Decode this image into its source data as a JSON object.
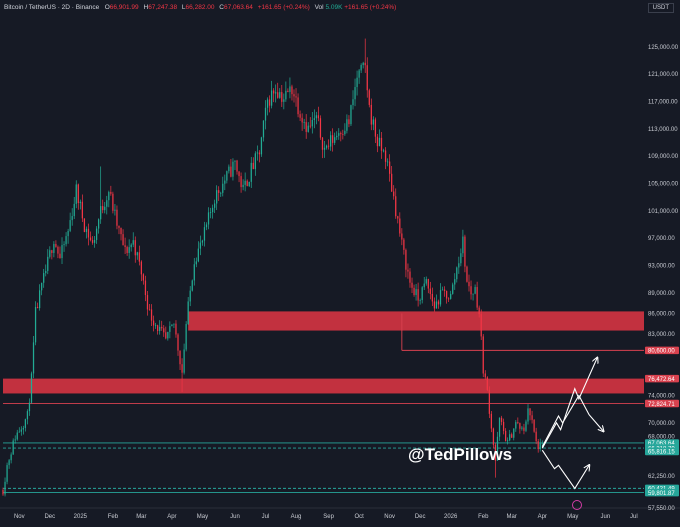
{
  "header": {
    "symbol": "Bitcoin / TetherUS · 2D · Binance",
    "open_label": "O",
    "open": "66,901.99",
    "high_label": "H",
    "high": "67,247.38",
    "low_label": "L",
    "low": "66,282.00",
    "close_label": "C",
    "close": "67,063.64",
    "change": "+161.65 (+0.24%)",
    "volume_label": "Vol",
    "volume": "5.09K",
    "volume_change": "+161.65 (+0.24%)"
  },
  "watermark": "@TedPillows",
  "colors": {
    "background": "#161a25",
    "up": "#22ab94",
    "down": "#f23645",
    "zone": "#c2313f",
    "line_red": "#d9424f",
    "line_green": "#26a69a",
    "arrow": "#ffffff",
    "axis_text": "#c9ccd3"
  },
  "chart_data": {
    "type": "candlestick",
    "title": "Bitcoin / TetherUS · 2D · Binance",
    "currency": "USDT",
    "ylim": [
      57550,
      129500
    ],
    "y_ticks": [
      125000,
      121000,
      117000,
      113000,
      109000,
      105000,
      101000,
      97000,
      93000,
      89000,
      86000,
      83000,
      80600,
      76472.64,
      74000,
      72824.71,
      70000,
      68000,
      67063.64,
      66318.7,
      65816.15,
      62250,
      60421.49,
      59801.87,
      57550
    ],
    "y_tick_labels": [
      "125,000.00",
      "121,000.00",
      "117,000.00",
      "113,000.00",
      "109,000.00",
      "105,000.00",
      "101,000.00",
      "97,000.00",
      "93,000.00",
      "89,000.00",
      "86,000.00",
      "83,000.00",
      "80,600.00",
      "76,472.64",
      "74,000.00",
      "72,824.71",
      "70,000.00",
      "68,000.00",
      "67,063.64",
      "66,318.70",
      "65,816.15",
      "62,250.00",
      "60,421.49",
      "59,801.87",
      "57,550.00"
    ],
    "x_ticks": [
      {
        "label": "Nov",
        "i": 8
      },
      {
        "label": "Dec",
        "i": 23
      },
      {
        "label": "2025",
        "i": 38
      },
      {
        "label": "Feb",
        "i": 54
      },
      {
        "label": "Mar",
        "i": 68
      },
      {
        "label": "Apr",
        "i": 83
      },
      {
        "label": "May",
        "i": 98
      },
      {
        "label": "Jun",
        "i": 114
      },
      {
        "label": "Jul",
        "i": 129
      },
      {
        "label": "Aug",
        "i": 144
      },
      {
        "label": "Sep",
        "i": 160
      },
      {
        "label": "Oct",
        "i": 175
      },
      {
        "label": "Nov",
        "i": 190
      },
      {
        "label": "Dec",
        "i": 205
      },
      {
        "label": "2026",
        "i": 220
      },
      {
        "label": "Feb",
        "i": 236
      },
      {
        "label": "Mar",
        "i": 250
      },
      {
        "label": "Apr",
        "i": 265
      },
      {
        "label": "May",
        "i": 280
      },
      {
        "label": "Jun",
        "i": 296
      },
      {
        "label": "Jul",
        "i": 310
      }
    ],
    "x_index_range": [
      0,
      315
    ],
    "price_waypoints": [
      [
        0,
        60200
      ],
      [
        2,
        63800
      ],
      [
        6,
        68000
      ],
      [
        9,
        69500
      ],
      [
        12,
        71000
      ],
      [
        14,
        76472.64
      ],
      [
        16,
        86000
      ],
      [
        20,
        91000
      ],
      [
        25,
        97000
      ],
      [
        28,
        94000
      ],
      [
        32,
        98000
      ],
      [
        36,
        104000
      ],
      [
        40,
        99000
      ],
      [
        44,
        96000
      ],
      [
        48,
        101000
      ],
      [
        52,
        104000
      ],
      [
        56,
        99000
      ],
      [
        60,
        95000
      ],
      [
        64,
        96500
      ],
      [
        68,
        92000
      ],
      [
        72,
        86000
      ],
      [
        76,
        84000
      ],
      [
        80,
        82000
      ],
      [
        84,
        84500
      ],
      [
        88,
        77500
      ],
      [
        90,
        84500
      ],
      [
        94,
        94000
      ],
      [
        98,
        96500
      ],
      [
        104,
        103000
      ],
      [
        110,
        106000
      ],
      [
        114,
        108000
      ],
      [
        118,
        104000
      ],
      [
        122,
        107000
      ],
      [
        126,
        109500
      ],
      [
        130,
        117000
      ],
      [
        134,
        119000
      ],
      [
        138,
        117500
      ],
      [
        142,
        119000
      ],
      [
        146,
        115500
      ],
      [
        150,
        113000
      ],
      [
        154,
        114500
      ],
      [
        158,
        110000
      ],
      [
        162,
        111500
      ],
      [
        166,
        113000
      ],
      [
        170,
        114000
      ],
      [
        174,
        120500
      ],
      [
        178,
        122000
      ],
      [
        180,
        116000
      ],
      [
        184,
        111000
      ],
      [
        188,
        109000
      ],
      [
        192,
        103000
      ],
      [
        196,
        96000
      ],
      [
        200,
        90500
      ],
      [
        204,
        88000
      ],
      [
        208,
        90500
      ],
      [
        212,
        87000
      ],
      [
        216,
        89000
      ],
      [
        220,
        88500
      ],
      [
        224,
        94000
      ],
      [
        226,
        96500
      ],
      [
        228,
        90500
      ],
      [
        230,
        89000
      ],
      [
        232,
        89500
      ],
      [
        234,
        86000
      ],
      [
        236,
        78000
      ],
      [
        238,
        74500
      ],
      [
        240,
        69500
      ],
      [
        242,
        64500
      ],
      [
        244,
        70500
      ],
      [
        248,
        67000
      ],
      [
        252,
        70000
      ],
      [
        256,
        68500
      ],
      [
        258,
        72500
      ],
      [
        260,
        70000
      ],
      [
        262,
        67000
      ],
      [
        264,
        66318.7
      ],
      [
        265,
        67063.64
      ]
    ],
    "low_points": [
      [
        88,
        74500
      ],
      [
        242,
        62000
      ],
      [
        264,
        65816.15
      ]
    ],
    "high_points": [
      [
        178,
        126200
      ],
      [
        48,
        107500
      ],
      [
        224,
        94300
      ]
    ],
    "zones": [
      {
        "from": 83500,
        "to": 86300,
        "x_start_i": 91
      },
      {
        "from": 74300,
        "to": 76472.64,
        "x_start_i": 0
      }
    ],
    "lines": [
      {
        "value": 80600,
        "label": "80,600.00",
        "color": "red",
        "style": "solid",
        "x_start_i": 196
      },
      {
        "value": 72824.71,
        "label": "72,824.71",
        "color": "red",
        "style": "solid",
        "x_start_i": 0
      },
      {
        "value": 66318.7,
        "label": "66,318.70",
        "color": "green",
        "style": "dashed",
        "x_start_i": 0
      },
      {
        "value": 67063.64,
        "label": "67,063.64",
        "color": "green",
        "style": "solid",
        "x_start_i": 0
      },
      {
        "value": 60421.49,
        "label": "60,421.49",
        "color": "green",
        "style": "dashed",
        "x_start_i": 0
      },
      {
        "value": 59801.87,
        "label": "59,801.87",
        "color": "green",
        "style": "solid",
        "x_start_i": 0
      }
    ],
    "vertical_guide": {
      "i": 196,
      "from": 80600,
      "to": 86000
    },
    "price_labels": [
      {
        "value": 80600,
        "text": "80,600.00",
        "color": "red"
      },
      {
        "value": 76472.64,
        "text": "76,472.64",
        "color": "red"
      },
      {
        "value": 72824.71,
        "text": "72,824.71",
        "color": "red"
      },
      {
        "value": 67063.64,
        "text": "67,063.64",
        "color": "green",
        "sub": "1d 16h"
      },
      {
        "value": 66318.7,
        "text": "66,318.70",
        "color": "green"
      },
      {
        "value": 65816.15,
        "text": "65,816.15",
        "color": "green"
      },
      {
        "value": 60421.49,
        "text": "60,421.49",
        "color": "green"
      },
      {
        "value": 59801.87,
        "text": "59,801.87",
        "color": "green"
      }
    ],
    "scenario_paths": [
      {
        "name": "bullish",
        "points": [
          [
            265,
            66300
          ],
          [
            272,
            70000
          ],
          [
            274,
            69000
          ],
          [
            281,
            75000
          ],
          [
            283,
            73500
          ],
          [
            292,
            79500
          ]
        ]
      },
      {
        "name": "range",
        "points": [
          [
            265,
            66500
          ],
          [
            273,
            71000
          ],
          [
            275,
            70000
          ],
          [
            283,
            74000
          ],
          [
            288,
            71200
          ],
          [
            295,
            68800
          ]
        ]
      },
      {
        "name": "bearish",
        "points": [
          [
            265,
            66000
          ],
          [
            271,
            63300
          ],
          [
            273,
            63800
          ],
          [
            281,
            60400
          ],
          [
            288,
            63800
          ]
        ]
      }
    ]
  }
}
